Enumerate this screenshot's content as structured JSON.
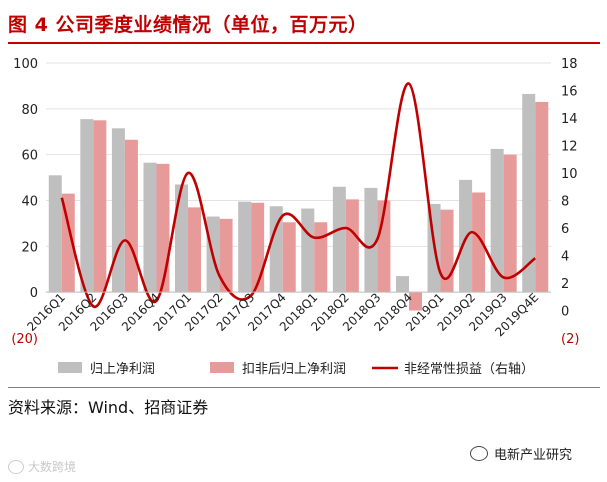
{
  "header": {
    "title": "图 4  公司季度业绩情况（单位，百万元）"
  },
  "footer": {
    "source": "资料来源：Wind、招商证券",
    "watermark": "电新产业研究",
    "corner_mark": "大数跨境"
  },
  "colors": {
    "bar1": "#bfbfbf",
    "bar2": "#e79a9a",
    "line": "#c00000",
    "title": "#c00000",
    "neg": "#c00000"
  },
  "chart_data": {
    "type": "bar",
    "categories": [
      "2016Q1",
      "2016Q2",
      "2016Q3",
      "2016Q4",
      "2017Q1",
      "2017Q2",
      "2017Q3",
      "2017Q4",
      "2018Q1",
      "2018Q2",
      "2018Q3",
      "2018Q4",
      "2019Q1",
      "2019Q2",
      "2019Q3",
      "2019Q4E"
    ],
    "series": [
      {
        "name": "归上净利润",
        "type": "bar",
        "axis": "left",
        "values": [
          51,
          75.5,
          71.5,
          56.5,
          47,
          33,
          39.5,
          37.5,
          36.5,
          46,
          45.5,
          7,
          38.5,
          49,
          62.5,
          86.5
        ]
      },
      {
        "name": "扣非后归上净利润",
        "type": "bar",
        "axis": "left",
        "values": [
          43,
          75,
          66.5,
          56,
          37,
          32,
          39,
          30.5,
          30.5,
          40.5,
          40,
          -8,
          36,
          43.5,
          60,
          83
        ]
      },
      {
        "name": "非经常性损益（右轴）",
        "type": "line",
        "axis": "right",
        "values": [
          8.2,
          0.3,
          5.1,
          0.7,
          10,
          2.5,
          1.1,
          6.9,
          5.3,
          6,
          5.2,
          16.5,
          2.7,
          5.7,
          2.4,
          3.8
        ]
      }
    ],
    "y_left": {
      "range": [
        -20,
        100
      ],
      "ticks": [
        -20,
        0,
        20,
        40,
        60,
        80,
        100
      ]
    },
    "y_right": {
      "range": [
        -2,
        18
      ],
      "ticks": [
        -2,
        0,
        2,
        4,
        6,
        8,
        10,
        12,
        14,
        16,
        18
      ]
    },
    "legend_position": "bottom",
    "grid": true
  }
}
